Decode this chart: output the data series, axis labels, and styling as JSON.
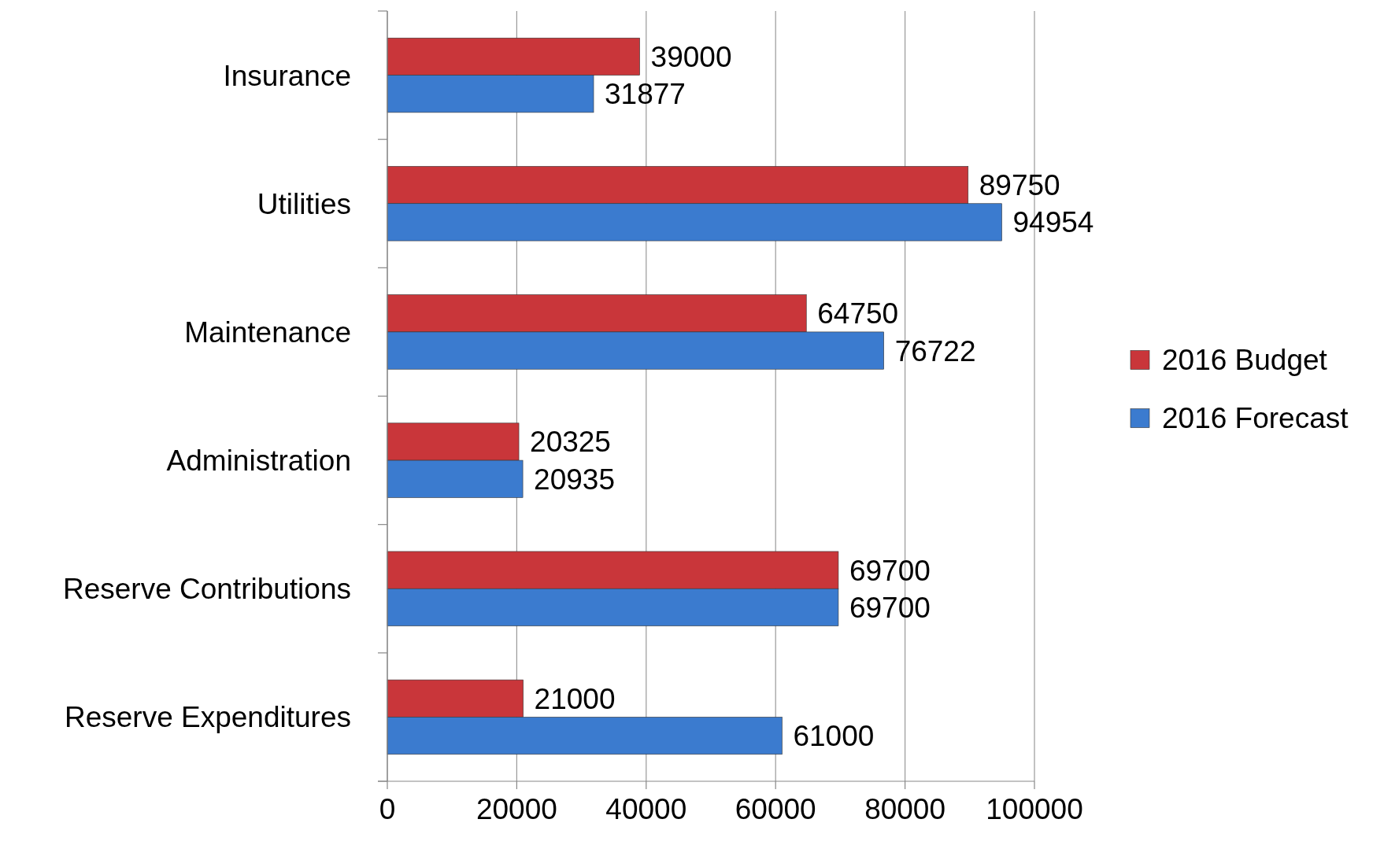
{
  "chart_data": {
    "type": "bar",
    "orientation": "horizontal",
    "categories": [
      "Insurance",
      "Utilities",
      "Maintenance",
      "Administration",
      "Reserve Contributions",
      "Reserve Expenditures"
    ],
    "series": [
      {
        "name": "2016 Budget",
        "color": "#c9363a",
        "values": [
          39000,
          89750,
          64750,
          20325,
          69700,
          21000
        ]
      },
      {
        "name": "2016 Forecast",
        "color": "#3b7bcf",
        "values": [
          31877,
          94954,
          76722,
          20935,
          69700,
          61000
        ]
      }
    ],
    "xlim": [
      0,
      100000
    ],
    "xticks": [
      0,
      20000,
      40000,
      60000,
      80000,
      100000
    ],
    "grid": "x",
    "legend": "right",
    "data_labels": true
  }
}
